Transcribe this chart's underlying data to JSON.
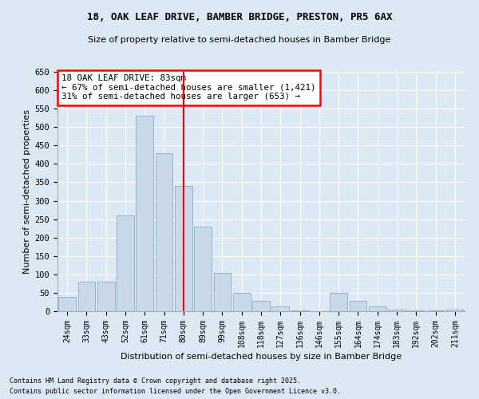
{
  "title_line1": "18, OAK LEAF DRIVE, BAMBER BRIDGE, PRESTON, PR5 6AX",
  "title_line2": "Size of property relative to semi-detached houses in Bamber Bridge",
  "xlabel": "Distribution of semi-detached houses by size in Bamber Bridge",
  "ylabel": "Number of semi-detached properties",
  "categories": [
    "24sqm",
    "33sqm",
    "43sqm",
    "52sqm",
    "61sqm",
    "71sqm",
    "80sqm",
    "89sqm",
    "99sqm",
    "108sqm",
    "118sqm",
    "127sqm",
    "136sqm",
    "146sqm",
    "155sqm",
    "164sqm",
    "174sqm",
    "183sqm",
    "192sqm",
    "202sqm",
    "211sqm"
  ],
  "values": [
    40,
    80,
    80,
    260,
    530,
    430,
    340,
    230,
    105,
    50,
    28,
    14,
    3,
    0,
    50,
    28,
    13,
    5,
    3,
    2,
    5
  ],
  "bar_color": "#c9d9ea",
  "bar_edgecolor": "#92b4cc",
  "vline_index": 6.5,
  "annotation_title": "18 OAK LEAF DRIVE: 83sqm",
  "annotation_line1": "← 67% of semi-detached houses are smaller (1,421)",
  "annotation_line2": "31% of semi-detached houses are larger (653) →",
  "ylim": [
    0,
    650
  ],
  "yticks": [
    0,
    50,
    100,
    150,
    200,
    250,
    300,
    350,
    400,
    450,
    500,
    550,
    600,
    650
  ],
  "footnote1": "Contains HM Land Registry data © Crown copyright and database right 2025.",
  "footnote2": "Contains public sector information licensed under the Open Government Licence v3.0.",
  "bg_color": "#dde8f5",
  "plot_bg_color": "#dde8f5"
}
